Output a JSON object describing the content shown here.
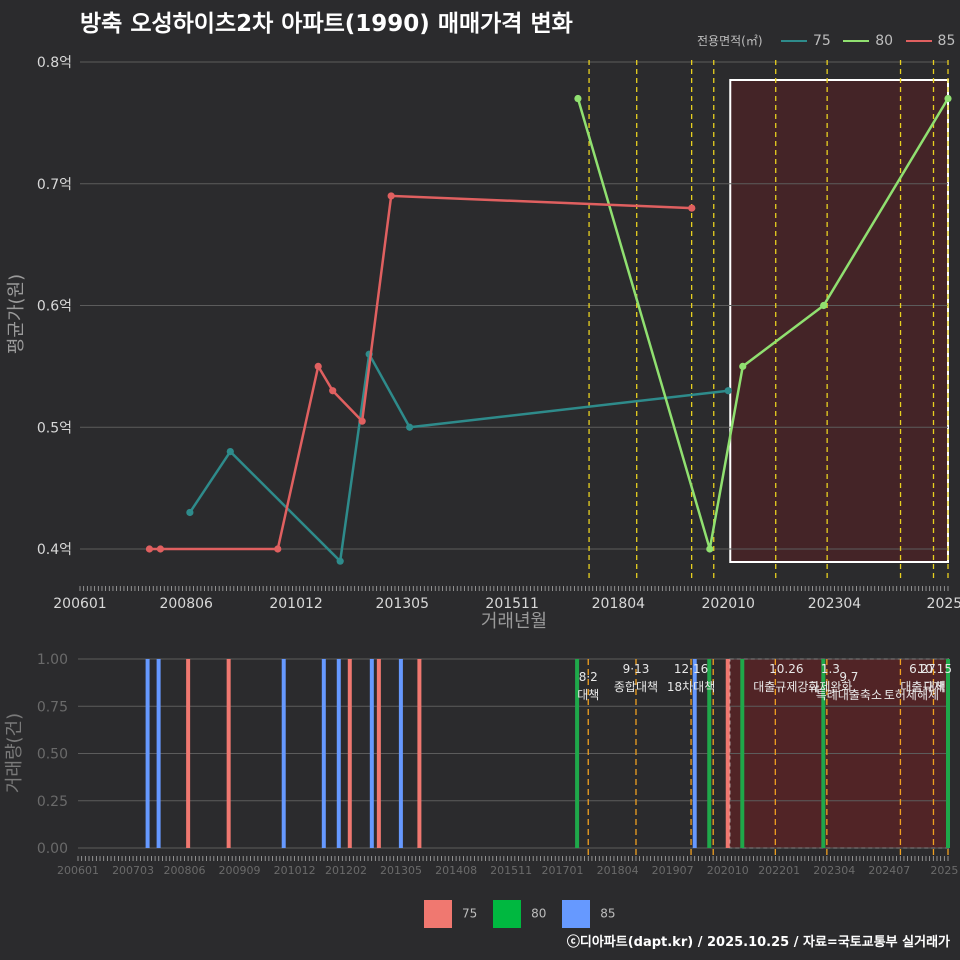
{
  "title": "방축 오성하이츠2차 아파트(1990) 매매가격 변화",
  "legend": {
    "title": "전용면적(㎡)",
    "items": [
      {
        "label": "75",
        "color": "#2e8b8b"
      },
      {
        "label": "80",
        "color": "#90e070"
      },
      {
        "label": "85",
        "color": "#e06060"
      }
    ]
  },
  "footer": "ⓒ디아파트(dapt.kr) / 2025.10.25 / 자료=국토교통부 실거래가",
  "chart_data": [
    {
      "type": "line",
      "title": "방축 오성하이츠2차 아파트(1990) 매매가격 변화",
      "xlabel": "거래년월",
      "ylabel": "평균가(원)",
      "ylim": [
        0.37,
        0.81
      ],
      "yticks": [
        0.4,
        0.5,
        0.6,
        0.7,
        0.8
      ],
      "ytick_labels": [
        "0.4억",
        "0.5억",
        "0.6억",
        "0.7억",
        "0.8억"
      ],
      "xticks": [
        2006.0,
        2008.417,
        2010.917,
        2013.333,
        2015.833,
        2018.25,
        2020.75,
        2023.167,
        2025.667
      ],
      "xtick_labels": [
        "200601",
        "200806",
        "201012",
        "201305",
        "201511",
        "201804",
        "202010",
        "202304",
        "2025"
      ],
      "xlim": [
        2006.0,
        2025.75
      ],
      "series": [
        {
          "name": "75",
          "color": "#2e8b8b",
          "points": [
            [
              2008.5,
              0.43
            ],
            [
              2009.42,
              0.48
            ],
            [
              2011.92,
              0.39
            ],
            [
              2012.58,
              0.56
            ],
            [
              2013.5,
              0.5
            ],
            [
              2020.75,
              0.53
            ]
          ]
        },
        {
          "name": "80",
          "color": "#90e070",
          "points": [
            [
              2017.33,
              0.77
            ],
            [
              2020.33,
              0.4
            ],
            [
              2021.08,
              0.55
            ],
            [
              2022.92,
              0.6
            ],
            [
              2025.75,
              0.77
            ]
          ]
        },
        {
          "name": "85",
          "color": "#e06060",
          "points": [
            [
              2007.58,
              0.4
            ],
            [
              2007.83,
              0.4
            ],
            [
              2010.5,
              0.4
            ],
            [
              2011.42,
              0.55
            ],
            [
              2011.75,
              0.53
            ],
            [
              2012.42,
              0.505
            ],
            [
              2013.08,
              0.69
            ],
            [
              2019.92,
              0.68
            ]
          ]
        }
      ],
      "policy_lines": [
        2017.583,
        2018.667,
        2019.917,
        2020.42,
        2021.83,
        2023.0,
        2024.67,
        2025.42,
        2025.75
      ],
      "highlight_range": [
        2020.75,
        2025.75
      ]
    },
    {
      "type": "bar",
      "xlabel": "",
      "ylabel": "거래량(건)",
      "ylim": [
        0,
        1
      ],
      "yticks": [
        0,
        0.25,
        0.5,
        0.75,
        1.0
      ],
      "ytick_labels": [
        "0.00",
        "0.25",
        "0.50",
        "0.75",
        "1.00"
      ],
      "xticks": [
        2006.0,
        2007.25,
        2008.417,
        2009.667,
        2010.917,
        2012.083,
        2013.333,
        2014.583,
        2015.833,
        2017.0,
        2018.25,
        2019.5,
        2020.75,
        2021.917,
        2023.167,
        2024.417,
        2025.667
      ],
      "xtick_labels": [
        "200601",
        "200703",
        "200806",
        "200909",
        "201012",
        "201202",
        "201305",
        "201408",
        "201511",
        "201701",
        "201804",
        "201907",
        "202010",
        "202201",
        "202304",
        "202407",
        "2025"
      ],
      "xlim": [
        2006.0,
        2025.75
      ],
      "bars": [
        {
          "x": 2007.58,
          "value": 1,
          "series": "85"
        },
        {
          "x": 2007.83,
          "value": 1,
          "series": "85"
        },
        {
          "x": 2008.5,
          "value": 1,
          "series": "75"
        },
        {
          "x": 2009.42,
          "value": 1,
          "series": "75"
        },
        {
          "x": 2010.67,
          "value": 1,
          "series": "85"
        },
        {
          "x": 2011.58,
          "value": 1,
          "series": "85"
        },
        {
          "x": 2011.92,
          "value": 1,
          "series": "85"
        },
        {
          "x": 2012.17,
          "value": 1,
          "series": "75"
        },
        {
          "x": 2012.67,
          "value": 1,
          "series": "85"
        },
        {
          "x": 2012.83,
          "value": 1,
          "series": "75"
        },
        {
          "x": 2013.33,
          "value": 1,
          "series": "85"
        },
        {
          "x": 2013.75,
          "value": 1,
          "series": "75"
        },
        {
          "x": 2017.33,
          "value": 1,
          "series": "80"
        },
        {
          "x": 2020.0,
          "value": 1,
          "series": "85"
        },
        {
          "x": 2020.33,
          "value": 1,
          "series": "80"
        },
        {
          "x": 2020.75,
          "value": 1,
          "series": "75"
        },
        {
          "x": 2021.08,
          "value": 1,
          "series": "80"
        },
        {
          "x": 2022.92,
          "value": 1,
          "series": "80"
        },
        {
          "x": 2025.75,
          "value": 1,
          "series": "80"
        }
      ],
      "bar_legend": [
        {
          "label": "75",
          "color": "#f07870"
        },
        {
          "label": "80",
          "color": "#00b840"
        },
        {
          "label": "85",
          "color": "#6699ff"
        }
      ],
      "annotations": [
        {
          "x": 2017.583,
          "row": 1,
          "date": "8·2",
          "text": "대책"
        },
        {
          "x": 2018.667,
          "row": 0,
          "date": "9·13",
          "text": "종합대책"
        },
        {
          "x": 2019.917,
          "row": 0,
          "date": "12·16",
          "text": "18차대책"
        },
        {
          "x": 2022.08,
          "row": 0,
          "date": "10.26",
          "text": "대출규제강화"
        },
        {
          "x": 2023.08,
          "row": 0,
          "date": "1.3",
          "text": "규제완화"
        },
        {
          "x": 2023.5,
          "row": 1,
          "date": "9.7",
          "text": "특례대출축소"
        },
        {
          "x": 2024.92,
          "row": 1,
          "date": "",
          "text": "토허제해제"
        },
        {
          "x": 2025.17,
          "row": 0,
          "date": "6.27",
          "text": "대출규제"
        },
        {
          "x": 2025.45,
          "row": 0,
          "date": "10.15",
          "text": "대책"
        }
      ],
      "policy_lines": [
        2017.583,
        2018.667,
        2019.917,
        2020.42,
        2021.83,
        2023.0,
        2024.67,
        2025.42,
        2025.75
      ],
      "highlight_range": [
        2020.75,
        2025.75
      ]
    }
  ]
}
